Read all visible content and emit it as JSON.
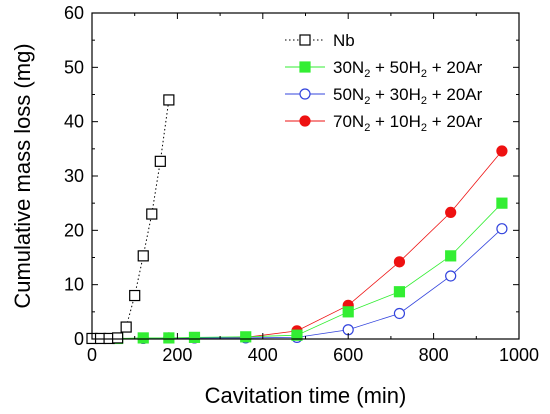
{
  "chart_data": {
    "type": "scatter",
    "xlabel": "Cavitation time (min)",
    "ylabel": "Cumulative mass loss (mg)",
    "xlim": [
      0,
      1000
    ],
    "ylim": [
      0,
      60
    ],
    "xticks": [
      "0",
      "200",
      "400",
      "600",
      "800",
      "1000"
    ],
    "yticks": [
      "0",
      "10",
      "20",
      "30",
      "40",
      "50",
      "60"
    ],
    "grid": false,
    "legend_placement": "top-right",
    "series": [
      {
        "name": "Nb",
        "name_parts": [
          {
            "t": "Nb",
            "sub": false
          }
        ],
        "marker": "open-square",
        "line": "dotted",
        "color": "#000000",
        "x": [
          0,
          20,
          40,
          60,
          80,
          100,
          120,
          140,
          160,
          180
        ],
        "y": [
          0.1,
          0.1,
          0.1,
          0.2,
          2.2,
          8.0,
          15.3,
          23.0,
          32.7,
          44.0
        ]
      },
      {
        "name": "30N2 + 50H2 + 20Ar",
        "name_parts": [
          {
            "t": "30N",
            "sub": false
          },
          {
            "t": "2",
            "sub": true
          },
          {
            "t": " + 50H",
            "sub": false
          },
          {
            "t": "2",
            "sub": true
          },
          {
            "t": " + 20Ar",
            "sub": false
          }
        ],
        "marker": "filled-square",
        "line": "solid",
        "color": "#33ee33",
        "x": [
          60,
          120,
          180,
          240,
          360,
          480,
          600,
          720,
          840,
          960
        ],
        "y": [
          0.1,
          0.2,
          0.2,
          0.3,
          0.4,
          0.7,
          5.0,
          8.7,
          15.3,
          25.0
        ]
      },
      {
        "name": "50N2 + 30H2 + 20Ar",
        "name_parts": [
          {
            "t": "50N",
            "sub": false
          },
          {
            "t": "2",
            "sub": true
          },
          {
            "t": " + 30H",
            "sub": false
          },
          {
            "t": "2",
            "sub": true
          },
          {
            "t": " + 20Ar",
            "sub": false
          }
        ],
        "marker": "open-circle",
        "line": "solid",
        "color": "#3344dd",
        "x": [
          60,
          120,
          180,
          240,
          360,
          480,
          600,
          720,
          840,
          960
        ],
        "y": [
          0.1,
          0.1,
          0.2,
          0.2,
          0.2,
          0.3,
          1.7,
          4.7,
          11.6,
          20.3
        ]
      },
      {
        "name": "70N2 + 10H2 + 20Ar",
        "name_parts": [
          {
            "t": "70N",
            "sub": false
          },
          {
            "t": "2",
            "sub": true
          },
          {
            "t": " + 10H",
            "sub": false
          },
          {
            "t": "2",
            "sub": true
          },
          {
            "t": " + 20Ar",
            "sub": false
          }
        ],
        "marker": "filled-circle",
        "line": "solid",
        "color": "#ee1111",
        "x": [
          60,
          120,
          180,
          240,
          360,
          480,
          600,
          720,
          840,
          960
        ],
        "y": [
          0.1,
          0.1,
          0.2,
          0.2,
          0.3,
          1.5,
          6.2,
          14.2,
          23.3,
          34.6
        ]
      }
    ]
  }
}
